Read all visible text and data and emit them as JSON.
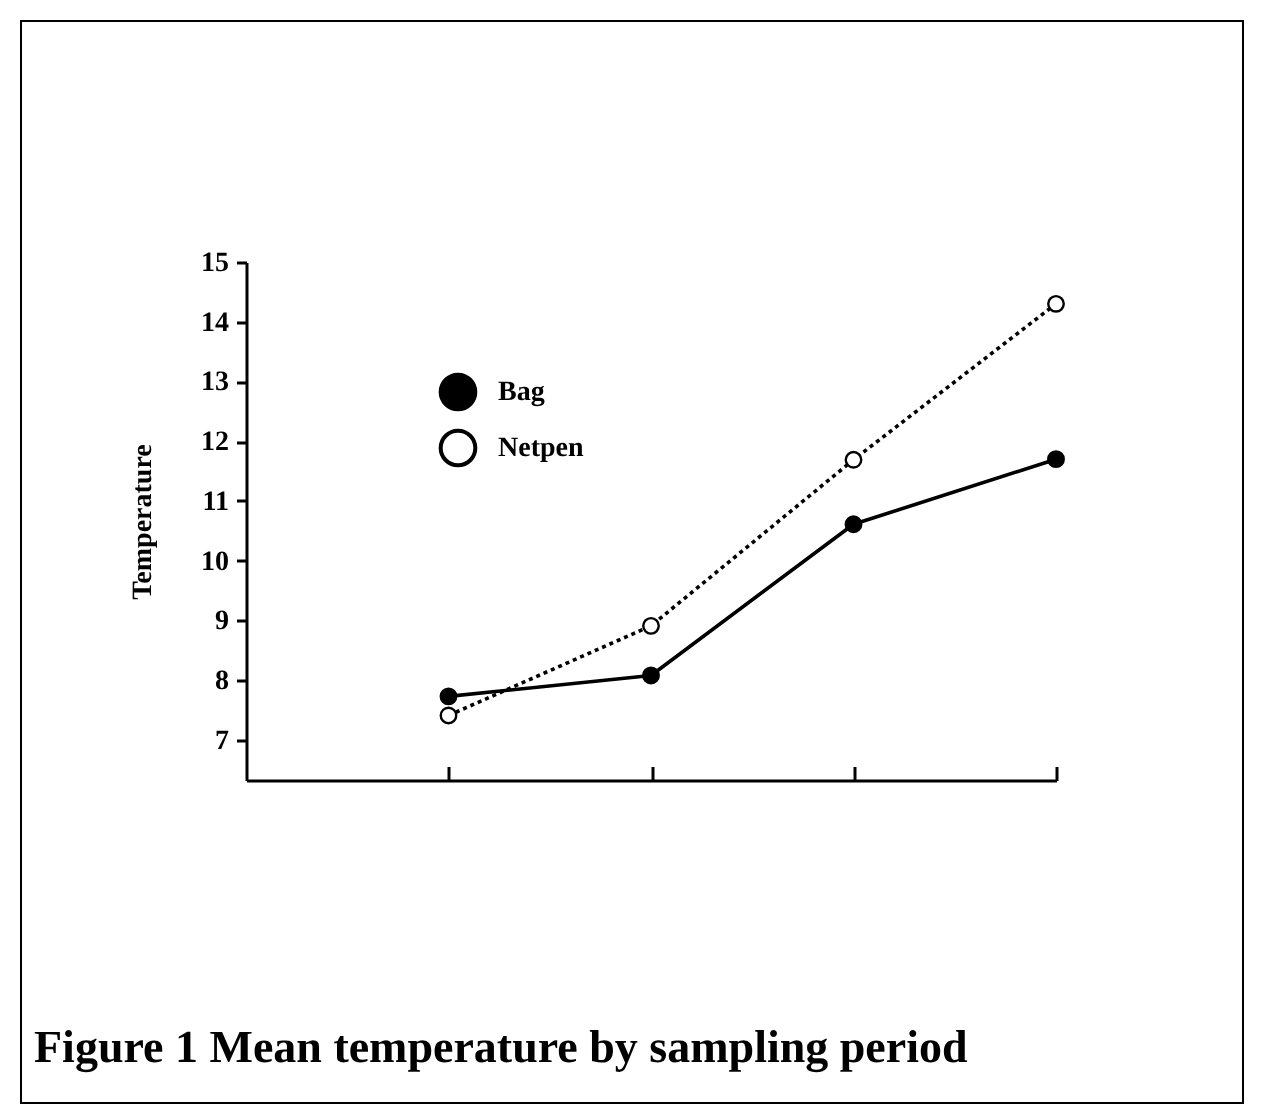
{
  "chart_data": {
    "type": "line",
    "title": "Figure 1 Mean temperature by sampling period",
    "ylabel": "Temperature",
    "categories": [
      null,
      null,
      null,
      null
    ],
    "series": [
      {
        "name": "Bag",
        "color": "#000000",
        "values": [
          7.73,
          8.08,
          10.61,
          11.7
        ],
        "line_style": "solid"
      },
      {
        "name": "Netpen",
        "color": "#000000",
        "values": [
          7.41,
          8.91,
          11.69,
          14.3
        ],
        "line_style": "dotted"
      }
    ],
    "ylim": [
      6.33,
      15
    ],
    "yticks": [
      7,
      8,
      9,
      10,
      11,
      12,
      13,
      14,
      15
    ],
    "grid": false,
    "legend": "top left",
    "marker": "circle",
    "tick_labels": "y"
  }
}
